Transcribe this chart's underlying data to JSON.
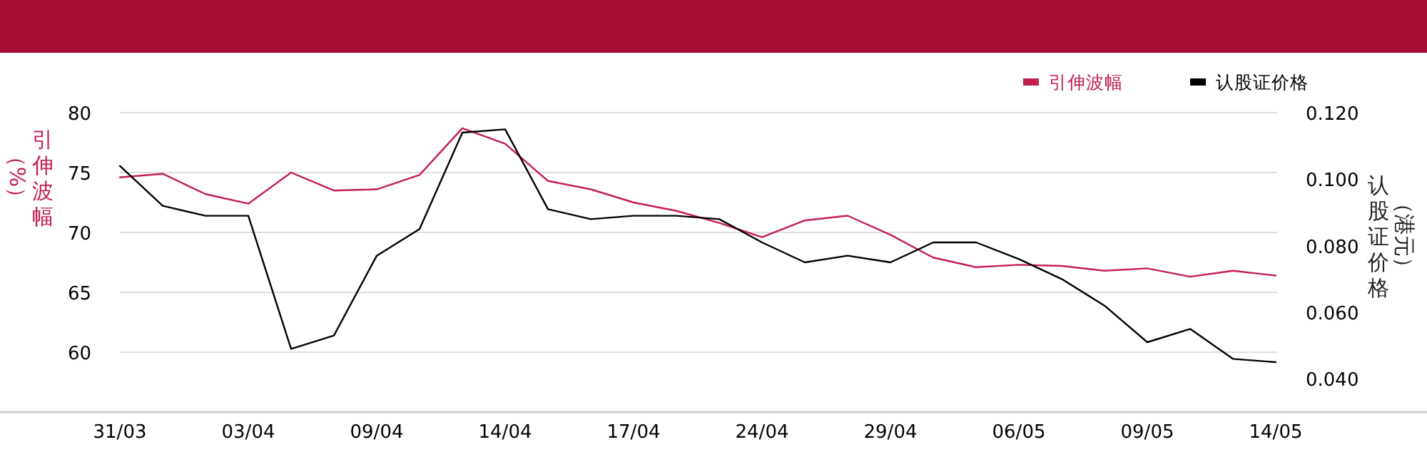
{
  "chart_data": {
    "type": "line",
    "categories": [
      "31/03",
      null,
      null,
      "03/04",
      null,
      null,
      "09/04",
      null,
      null,
      "14/04",
      null,
      null,
      "17/04",
      null,
      null,
      "24/04",
      null,
      null,
      "29/04",
      null,
      null,
      "06/05",
      null,
      null,
      "09/05",
      null,
      null,
      "14/05"
    ],
    "series": [
      {
        "name": "引伸波幅",
        "color": "#c41f4d",
        "axis": "y",
        "values": [
          74.6,
          74.9,
          73.2,
          72.4,
          75.0,
          73.5,
          73.6,
          74.8,
          78.7,
          77.4,
          74.3,
          73.6,
          72.5,
          71.8,
          70.8,
          69.6,
          71.0,
          71.4,
          69.8,
          67.9,
          67.1,
          67.3,
          67.2,
          66.8,
          67.0,
          66.3,
          66.8,
          66.4
        ]
      },
      {
        "name": "认股证价格",
        "color": "#000000",
        "axis": "y2",
        "values": [
          0.104,
          0.092,
          0.089,
          0.089,
          0.049,
          0.053,
          0.077,
          0.085,
          0.114,
          0.115,
          0.091,
          0.088,
          0.089,
          0.089,
          0.088,
          0.081,
          0.075,
          0.077,
          0.075,
          0.081,
          0.081,
          0.076,
          0.07,
          0.062,
          0.051,
          0.055,
          0.046,
          0.045
        ]
      }
    ],
    "ylim": [
      55,
      80
    ],
    "yticks": [
      60,
      65,
      70,
      75,
      80
    ],
    "y2lim": [
      0.03,
      0.12
    ],
    "y2ticks": [
      {
        "value": 0.04,
        "label": "0.040"
      },
      {
        "value": 0.06,
        "label": "0.060"
      },
      {
        "value": 0.08,
        "label": "0.080"
      },
      {
        "value": 0.1,
        "label": "0.100"
      },
      {
        "value": 0.12,
        "label": "0.120"
      }
    ],
    "ylabel": "引伸波幅（%）",
    "y2label": "认股证价格（港元）",
    "grid": "y",
    "legend": "top right"
  }
}
